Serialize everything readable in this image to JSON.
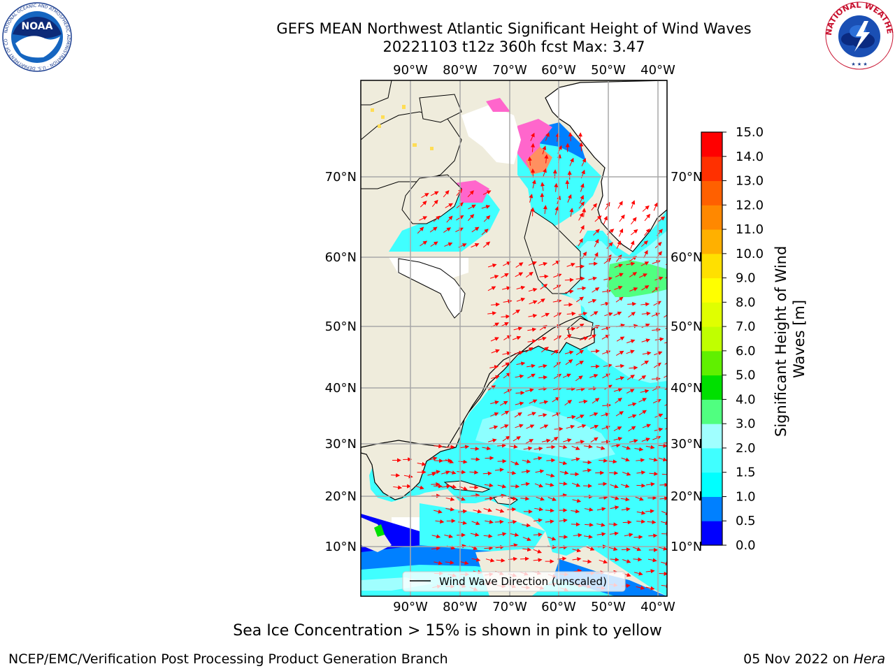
{
  "title": {
    "line1": "GEFS MEAN Northwest Atlantic Significant Height of Wind Waves",
    "line2": "20221103 t12z 360h fcst   Max: 3.47"
  },
  "map": {
    "lon_labels_top": [
      "90°W",
      "80°W",
      "70°W",
      "60°W",
      "50°W",
      "40°W"
    ],
    "lon_labels_bottom": [
      "90°W",
      "80°W",
      "70°W",
      "60°W",
      "50°W",
      "40°W"
    ],
    "lat_labels_left": [
      "70°N",
      "60°N",
      "50°N",
      "40°N",
      "30°N",
      "20°N",
      "10°N"
    ],
    "lat_labels_right": [
      "70°N",
      "60°N",
      "50°N",
      "40°N",
      "30°N",
      "20°N",
      "10°N"
    ],
    "legend_label": "Wind Wave Direction (unscaled)",
    "land_color": "#efecdc",
    "arrow_color": "#ff0000"
  },
  "colorbar": {
    "label": "Significant Height of Wind Waves [m]",
    "ticks": [
      "0.0",
      "0.5",
      "1.0",
      "1.5",
      "2.0",
      "3.0",
      "4.0",
      "5.0",
      "6.0",
      "7.0",
      "8.0",
      "9.0",
      "10.0",
      "11.0",
      "12.0",
      "13.0",
      "14.0",
      "15.0"
    ],
    "colors": [
      "#0000ff",
      "#0080ff",
      "#00ffff",
      "#40ffff",
      "#a0ffff",
      "#50ff80",
      "#00e000",
      "#60f000",
      "#c0ff00",
      "#e0ff00",
      "#ffff00",
      "#ffe000",
      "#ffb000",
      "#ff8800",
      "#ff6000",
      "#ff3000",
      "#ff0000"
    ]
  },
  "logos": {
    "noaa_text": "NOAA",
    "noaa_ring": "NATIONAL OCEANIC AND ATMOSPHERIC ADMINISTRATION · U.S. DEPARTMENT OF COMMERCE",
    "nws_ring": "NATIONAL WEATHER SERVICE"
  },
  "footer": {
    "caption": "Sea Ice Concentration > 15% is shown in pink to yellow",
    "credit": "NCEP/EMC/Verification Post Processing Product Generation Branch",
    "date": "05 Nov 2022 on ",
    "host": "Hera"
  }
}
